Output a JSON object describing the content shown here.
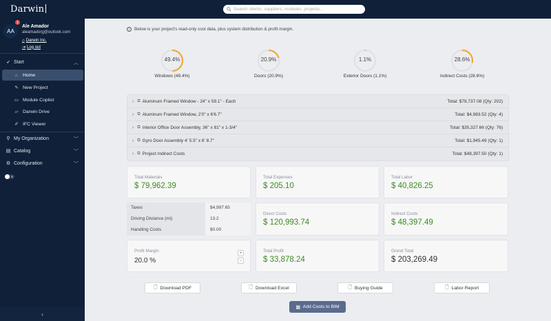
{
  "app": {
    "logo": "Darwin"
  },
  "search": {
    "placeholder": "Search clients, suppliers, modules, projects..."
  },
  "user": {
    "initials": "AA",
    "badge": "1",
    "name": "Ale Amador",
    "email": "aleamadorg@outlook.com",
    "org": "Darwin Inc.",
    "logout": "Log out"
  },
  "sidebar": {
    "start": "Start",
    "items": [
      {
        "label": "Home"
      },
      {
        "label": "New Project"
      },
      {
        "label": "Module Copilot"
      },
      {
        "label": "Darwin Drive"
      },
      {
        "label": "IFC Viewer"
      }
    ],
    "sections": [
      {
        "label": "My Organization"
      },
      {
        "label": "Catalog"
      },
      {
        "label": "Configuration"
      }
    ]
  },
  "main": {
    "info": "Below is your project's read-only cost data, plus system distribution & profit margin."
  },
  "gauges": [
    {
      "pct": "49.4%",
      "label": "Windows (49.4%)",
      "value": 0.494
    },
    {
      "pct": "20.9%",
      "label": "Doors (20.9%)",
      "value": 0.209
    },
    {
      "pct": "1.1%",
      "label": "Exterior Doors (1.1%)",
      "value": 0.011
    },
    {
      "pct": "28.6%",
      "label": "Indirect Costs (28.6%)",
      "value": 0.286
    }
  ],
  "rows": [
    {
      "name": "Aluminum Framed Window - 24\" x 59.1\" - Each",
      "total": "Total: $78,737.08 (Qty: 202)"
    },
    {
      "name": "Aluminum Framed Window, 2'0\" x 6'6.7\"",
      "total": "Total: $4,983.52 (Qty: 4)"
    },
    {
      "name": "Interior Office Door Assembly, 36\" x 81\" x 1-3/4\"",
      "total": "Total: $35,327.66 (Qty: 76)"
    },
    {
      "name": "Gyro Door Assembly 4' 5.5\" x 6' 8.7\"",
      "total": "Total: $1,945.49 (Qty: 1)"
    },
    {
      "name": "Project Indirect Costs",
      "total": "Total: $48,397.50 (Qty: 1)"
    }
  ],
  "cards": {
    "total_materials": {
      "label": "Total Materials",
      "value": "$ 79,962.39"
    },
    "total_expenses": {
      "label": "Total Expenses",
      "value": "$ 205.10"
    },
    "total_labor": {
      "label": "Total Labor",
      "value": "$ 40,826.25"
    },
    "direct_costs": {
      "label": "Direct Costs",
      "value": "$ 120,993.74"
    },
    "indirect_costs": {
      "label": "Indirect Costs",
      "value": "$ 48,397.49"
    },
    "total_profit": {
      "label": "Total Profit",
      "value": "$ 33,878.24"
    },
    "grand_total": {
      "label": "Grand Total",
      "value": "$ 203,269.49"
    },
    "profit_margin": {
      "label": "Profit Margin",
      "value": "20.0 %"
    }
  },
  "taxes": [
    {
      "k": "Taxes",
      "v": "$4,997.65"
    },
    {
      "k": "Driving Distance (mi)",
      "v": "13.2"
    },
    {
      "k": "Handling Costs",
      "v": "$0.00"
    }
  ],
  "buttons": {
    "pdf": "Download PDF",
    "excel": "Download Excel",
    "guide": "Buying Guide",
    "labor": "Labor Report",
    "bim": "Add Costs to BIM"
  },
  "colors": {
    "accent": "#f2a93b",
    "value_green": "#3d8b1f",
    "sidebar": "#0f2038",
    "primary_button": "#5b6b8e"
  }
}
